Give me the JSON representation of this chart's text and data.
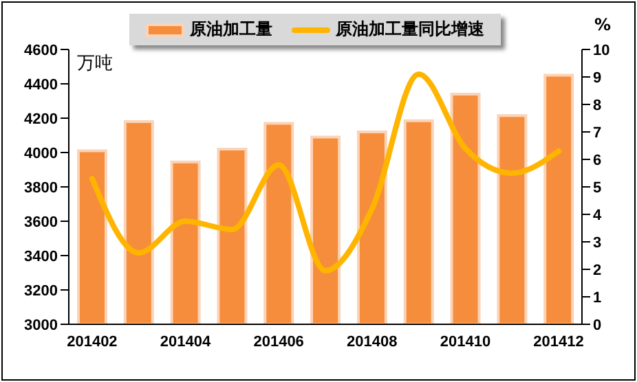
{
  "chart_data": {
    "type": "bar",
    "categories": [
      "201402",
      null,
      "201404",
      null,
      "201406",
      null,
      "201408",
      null,
      "201410",
      null,
      "201412"
    ],
    "series": [
      {
        "name": "原油加工量",
        "color": "#f68d3c",
        "values": [
          4010,
          4180,
          3945,
          4020,
          4170,
          4090,
          4120,
          4185,
          4340,
          4215,
          4450
        ]
      },
      {
        "name": "原油加工量同比增速",
        "type": "line",
        "axis": "y2",
        "color": "#ffb400",
        "values": [
          5.3,
          2.6,
          3.75,
          3.45,
          5.8,
          1.95,
          4.2,
          9.1,
          6.4,
          5.5,
          6.3
        ]
      }
    ],
    "ylim": [
      3000,
      4600
    ],
    "yticks": [
      3000,
      3200,
      3400,
      3600,
      3800,
      4000,
      4200,
      4400,
      4600
    ],
    "y2lim": [
      0,
      10
    ],
    "y2ticks": [
      0,
      1,
      2,
      3,
      4,
      5,
      6,
      7,
      8,
      9,
      10
    ],
    "annotations": [
      "万吨",
      "%"
    ],
    "legend": "top",
    "grid": false,
    "marker": "none"
  }
}
